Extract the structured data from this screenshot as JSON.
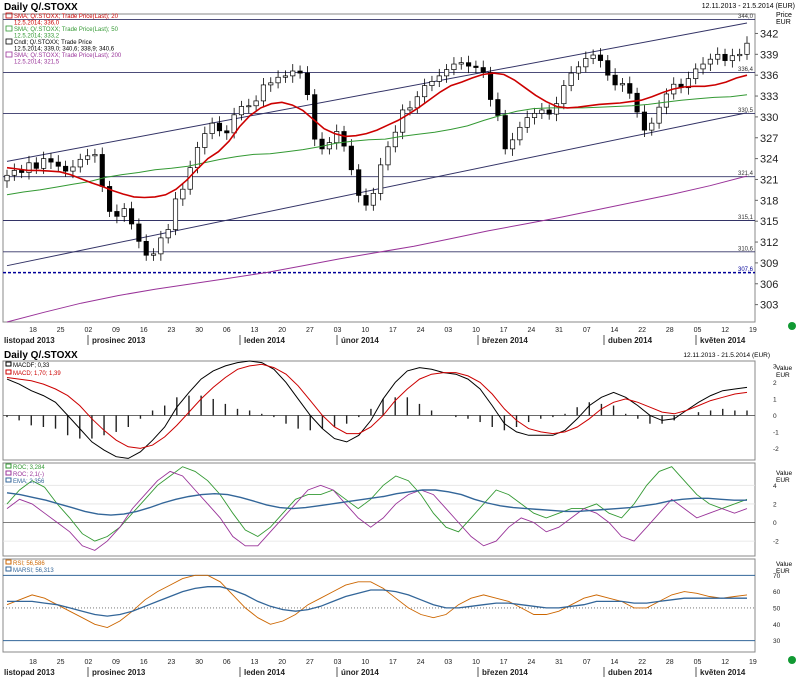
{
  "page": {
    "top_right": "12.11.2013 - 21.5.2014 (EUR)"
  },
  "chart_data": [
    {
      "type": "line",
      "title": "Daily Q/.STOXX",
      "subtitle": "12.11.2013 - 21.5.2014 (EUR)",
      "axis_caption": [
        "Price",
        "EUR"
      ],
      "legend": [
        {
          "label": "SMA; Q/.STOXX; Trade Price(Last); 20",
          "value": "12.5.2014; 336,0",
          "color": "#cc0000"
        },
        {
          "label": "SMA; Q/.STOXX; Trade Price(Last); 50",
          "value": "12.5.2014; 333,2",
          "color": "#339933"
        },
        {
          "label": "Cndl; Q/.STOXX; Trade Price",
          "value": "12.5.2014; 339,0; 340,6; 338,9; 340,6",
          "color": "#000000"
        },
        {
          "label": "SMA; Q/.STOXX; Trade Price(Last); 200",
          "value": "12.5.2014; 321,5",
          "color": "#993399"
        }
      ],
      "yticks": [
        303,
        306,
        309,
        312,
        315,
        318,
        321,
        324,
        327,
        330,
        333,
        336,
        339,
        342
      ],
      "ylim": [
        300.5,
        344.8
      ],
      "hlines": [
        {
          "y": 344.0,
          "label": "344,0"
        },
        {
          "y": 336.4,
          "label": "336,4"
        },
        {
          "y": 330.5,
          "label": "330,5"
        },
        {
          "y": 321.4,
          "label": "321,4"
        },
        {
          "y": 315.1,
          "label": "315,1"
        },
        {
          "y": 310.6,
          "label": "310,6"
        }
      ],
      "dotted_line": {
        "y": 307.6,
        "label": "307,6"
      },
      "x_day_labels": [
        "18",
        "25",
        "02",
        "09",
        "16",
        "23",
        "30",
        "06",
        "13",
        "20",
        "27",
        "03",
        "10",
        "17",
        "24",
        "03",
        "10",
        "17",
        "24",
        "31",
        "07",
        "14",
        "22",
        "28",
        "05",
        "12",
        "19"
      ],
      "x_month_labels": [
        "listopad 2013",
        "prosinec 2013",
        "leden 2014",
        "únor 2014",
        "březen 2014",
        "duben 2014",
        "květen 2014"
      ],
      "candles_close": [
        321.6,
        322.3,
        322.0,
        323.4,
        322.6,
        324.0,
        323.5,
        322.9,
        322.2,
        322.8,
        323.9,
        324.4,
        324.6,
        320.0,
        316.4,
        315.7,
        316.8,
        314.6,
        312.1,
        310.1,
        310.3,
        312.6,
        313.8,
        318.2,
        319.6,
        322.7,
        325.6,
        327.6,
        329.1,
        328.0,
        327.7,
        330.3,
        331.5,
        331.6,
        332.3,
        334.6,
        334.9,
        335.7,
        335.9,
        336.6,
        336.3,
        333.2,
        326.8,
        325.4,
        326.3,
        327.9,
        325.8,
        322.4,
        318.7,
        317.3,
        319.0,
        323.1,
        325.7,
        327.8,
        331.0,
        331.3,
        332.9,
        334.5,
        335.1,
        335.9,
        336.8,
        337.6,
        337.8,
        337.3,
        337.1,
        336.4,
        332.5,
        330.2,
        325.4,
        326.7,
        328.5,
        329.9,
        330.5,
        331.0,
        330.4,
        331.9,
        334.5,
        336.3,
        337.2,
        338.4,
        338.9,
        338.1,
        336.0,
        334.6,
        334.8,
        333.4,
        330.7,
        328.1,
        329.1,
        331.4,
        333.3,
        334.7,
        334.2,
        335.5,
        336.9,
        337.6,
        338.3,
        339.0,
        338.1,
        338.8,
        339.0,
        340.6
      ],
      "candles_range": [
        2.0,
        1.6
      ],
      "sma20": [
        322.7,
        322.5,
        322.3,
        322.3,
        322.2,
        322.1,
        321.7,
        321.1,
        320.5,
        320.0,
        319.4,
        318.9,
        318.5,
        318.4,
        318.5,
        318.8,
        319.6,
        320.9,
        322.5,
        324.0,
        325.0,
        326.5,
        328.6,
        330.2,
        331.3,
        331.9,
        332.1,
        331.7,
        330.9,
        329.6,
        328.3,
        327.6,
        327.2,
        327.3,
        327.6,
        328.1,
        328.8,
        329.5,
        330.4,
        331.4,
        332.5,
        333.6,
        334.5,
        335.0,
        335.6,
        336.1,
        336.3,
        336.1,
        335.3,
        334.2,
        333.1,
        332.2,
        331.5,
        331.3,
        331.4,
        331.6,
        331.8,
        331.9,
        332.0,
        332.2,
        332.4,
        332.9,
        333.5,
        334.0,
        334.3,
        334.4,
        334.4,
        334.6,
        335.0,
        335.6,
        336.0
      ],
      "sma50": [
        318.8,
        319.2,
        319.5,
        319.9,
        320.3,
        320.7,
        321.3,
        321.7,
        322.0,
        322.4,
        322.6,
        322.9,
        323.4,
        323.9,
        324.3,
        324.6,
        324.7,
        325.0,
        325.3,
        325.7,
        326.2,
        326.5,
        326.7,
        326.8,
        327.2,
        327.5,
        327.8,
        328.2,
        328.7,
        329.5,
        330.2,
        330.8,
        331.2,
        331.3,
        331.3,
        331.3,
        331.4,
        331.5,
        331.6,
        331.8,
        332.1,
        332.4,
        332.6,
        332.8,
        332.9,
        333.2
      ],
      "sma200": [
        300.5,
        301.9,
        303.2,
        304.3,
        305.2,
        306.0,
        306.8,
        307.6,
        308.6,
        309.6,
        310.5,
        311.4,
        312.5,
        313.6,
        314.6,
        315.6,
        316.7,
        317.8,
        318.9,
        320.1,
        321.5
      ],
      "channel_upper": [
        [
          0,
          323.6
        ],
        [
          101,
          343.5
        ]
      ],
      "channel_lower": [
        [
          0,
          308.6
        ],
        [
          101,
          330.6
        ]
      ]
    },
    {
      "type": "line",
      "title": "Daily Q/.STOXX",
      "subtitle": "12.11.2013 - 21.5.2014 (EUR)",
      "axis_caption": [
        "Value",
        "EUR"
      ],
      "legend": [
        {
          "label": "MACDF; 0,33",
          "color": "#000000"
        },
        {
          "label": "MACD; 1,70; 1,39",
          "color": "#cc0000"
        }
      ],
      "yticks": [
        -2,
        -1,
        0,
        1,
        2,
        3
      ],
      "ylim": [
        -2.7,
        3.3
      ],
      "macd_line": [
        2.2,
        1.9,
        1.5,
        1.2,
        0.8,
        0.0,
        -0.8,
        -1.6,
        -2.1,
        -2.5,
        -2.6,
        -2.2,
        -1.5,
        -0.7,
        0.5,
        1.4,
        2.2,
        2.7,
        3.0,
        3.2,
        3.3,
        3.2,
        2.8,
        2.0,
        1.0,
        0.0,
        -0.8,
        -1.4,
        -1.6,
        -1.2,
        -0.3,
        1.0,
        2.0,
        2.7,
        2.9,
        2.8,
        2.6,
        2.5,
        2.2,
        1.6,
        0.6,
        -0.5,
        -1.0,
        -1.2,
        -1.2,
        -1.2,
        -0.9,
        -0.2,
        0.6,
        1.1,
        1.4,
        1.1,
        0.6,
        0.0,
        -0.3,
        -0.2,
        0.3,
        0.8,
        1.2,
        1.5,
        1.6,
        1.7
      ],
      "signal_line": [
        2.3,
        2.2,
        2.1,
        1.9,
        1.6,
        1.2,
        0.6,
        -0.2,
        -0.9,
        -1.5,
        -1.9,
        -2.0,
        -1.8,
        -1.3,
        -0.6,
        0.2,
        1.0,
        1.7,
        2.3,
        2.8,
        3.0,
        3.1,
        2.9,
        2.5,
        1.8,
        0.9,
        0.0,
        -0.7,
        -1.1,
        -1.1,
        -0.7,
        0.0,
        0.9,
        1.6,
        2.2,
        2.5,
        2.6,
        2.6,
        2.4,
        2.0,
        1.3,
        0.4,
        -0.3,
        -0.8,
        -1.0,
        -1.1,
        -1.0,
        -0.7,
        -0.2,
        0.4,
        0.8,
        1.0,
        0.8,
        0.5,
        0.2,
        0.1,
        0.3,
        0.6,
        0.9,
        1.1,
        1.3,
        1.4
      ],
      "histogram": [
        -0.1,
        -0.3,
        -0.6,
        -0.7,
        -0.8,
        -1.2,
        -1.4,
        -1.4,
        -1.2,
        -1.0,
        -0.7,
        -0.2,
        0.3,
        0.6,
        1.1,
        1.2,
        1.2,
        1.0,
        0.7,
        0.4,
        0.3,
        0.1,
        -0.1,
        -0.5,
        -0.8,
        -0.9,
        -0.8,
        -0.7,
        -0.5,
        -0.1,
        0.4,
        1.0,
        1.1,
        1.1,
        0.7,
        0.3,
        0.0,
        -0.1,
        -0.2,
        -0.4,
        -0.7,
        -0.9,
        -0.7,
        -0.4,
        -0.2,
        -0.1,
        0.1,
        0.5,
        0.8,
        0.7,
        0.6,
        0.1,
        -0.2,
        -0.5,
        -0.5,
        -0.3,
        0.0,
        0.2,
        0.3,
        0.4,
        0.3,
        0.3
      ]
    },
    {
      "type": "line",
      "axis_caption": [
        "Value",
        "EUR"
      ],
      "legend": [
        {
          "label": "ROC; 3,284",
          "color": "#339933"
        },
        {
          "label": "ROC; 2,1(-)",
          "color": "#993399"
        },
        {
          "label": "EMA; 2,356",
          "color": "#336699"
        }
      ],
      "yticks": [
        -2,
        0,
        2,
        4
      ],
      "ylim": [
        -3.6,
        6.4
      ],
      "roc_green": [
        2.0,
        3.5,
        4.5,
        3.8,
        2.0,
        0.5,
        -1.2,
        -2.0,
        -1.5,
        -0.5,
        1.0,
        2.5,
        4.0,
        5.0,
        6.0,
        5.5,
        4.5,
        3.0,
        1.0,
        -0.8,
        -1.5,
        -0.5,
        1.0,
        2.5,
        3.0,
        3.0,
        3.5,
        2.5,
        1.5,
        2.5,
        4.0,
        5.0,
        4.5,
        3.0,
        1.0,
        -0.5,
        -1.0,
        0.5,
        2.0,
        3.5,
        3.0,
        2.0,
        1.0,
        0.5,
        1.0,
        1.5,
        1.5,
        2.0,
        1.0,
        0.5,
        2.0,
        4.0,
        5.5,
        6.0,
        4.5,
        3.0,
        2.0,
        1.5,
        2.0,
        2.5
      ],
      "roc_purple": [
        1.5,
        2.5,
        2.0,
        1.0,
        0.0,
        -1.0,
        -2.5,
        -3.0,
        -2.0,
        -0.5,
        1.5,
        3.0,
        4.5,
        5.5,
        5.0,
        3.5,
        2.0,
        0.5,
        -1.5,
        -2.5,
        -2.5,
        -1.0,
        0.5,
        2.0,
        3.5,
        4.0,
        3.5,
        2.0,
        0.5,
        -0.5,
        0.5,
        2.0,
        3.0,
        3.5,
        3.0,
        1.5,
        0.0,
        -1.5,
        -2.5,
        -2.0,
        -0.5,
        0.5,
        0.0,
        -1.0,
        -0.5,
        0.5,
        1.5,
        1.0,
        0.0,
        -1.5,
        -2.0,
        -0.5,
        1.0,
        2.5,
        1.5,
        0.5,
        1.0,
        1.5,
        1.0,
        1.5
      ],
      "ema": [
        3.2,
        3.0,
        2.7,
        2.4,
        2.0,
        1.6,
        1.2,
        0.9,
        0.8,
        0.9,
        1.2,
        1.6,
        2.1,
        2.5,
        2.8,
        3.0,
        3.1,
        3.0,
        2.7,
        2.3,
        1.9,
        1.6,
        1.5,
        1.6,
        1.8,
        2.0,
        2.2,
        2.4,
        2.6,
        2.8,
        3.1,
        3.3,
        3.5,
        3.5,
        3.3,
        3.0,
        2.5,
        2.1,
        1.8,
        1.6,
        1.5,
        1.4,
        1.3,
        1.2,
        1.2,
        1.3,
        1.4,
        1.5,
        1.6,
        1.8,
        2.0,
        2.3,
        2.5,
        2.6,
        2.6,
        2.5,
        2.4,
        2.4
      ]
    },
    {
      "type": "line",
      "axis_caption": [
        "Value",
        "EUR"
      ],
      "legend": [
        {
          "label": "RSI; 56,586",
          "color": "#cc6600"
        },
        {
          "label": "MARSI; 56,313",
          "color": "#336699"
        }
      ],
      "yticks": [
        30,
        40,
        50,
        60,
        70
      ],
      "ylim": [
        23,
        80
      ],
      "hlines": [
        70,
        30
      ],
      "dotted": 50,
      "rsi": [
        52,
        55,
        58,
        56,
        52,
        48,
        44,
        40,
        38,
        42,
        48,
        55,
        60,
        64,
        68,
        70,
        70,
        66,
        58,
        50,
        44,
        40,
        42,
        46,
        52,
        56,
        60,
        64,
        66,
        66,
        62,
        56,
        50,
        46,
        44,
        46,
        52,
        56,
        58,
        56,
        54,
        50,
        46,
        46,
        48,
        52,
        56,
        58,
        56,
        54,
        50,
        50,
        54,
        58,
        60,
        59,
        57,
        56,
        57,
        58
      ],
      "marsi": [
        54,
        54,
        54,
        53,
        52,
        50,
        48,
        46,
        45,
        46,
        48,
        51,
        54,
        57,
        60,
        62,
        63,
        63,
        61,
        58,
        54,
        51,
        49,
        48,
        49,
        51,
        54,
        57,
        59,
        61,
        61,
        60,
        58,
        55,
        52,
        50,
        50,
        51,
        52,
        53,
        53,
        52,
        51,
        50,
        50,
        51,
        52,
        54,
        54,
        54,
        53,
        53,
        54,
        55,
        56,
        56,
        56,
        56,
        56,
        56
      ]
    }
  ]
}
